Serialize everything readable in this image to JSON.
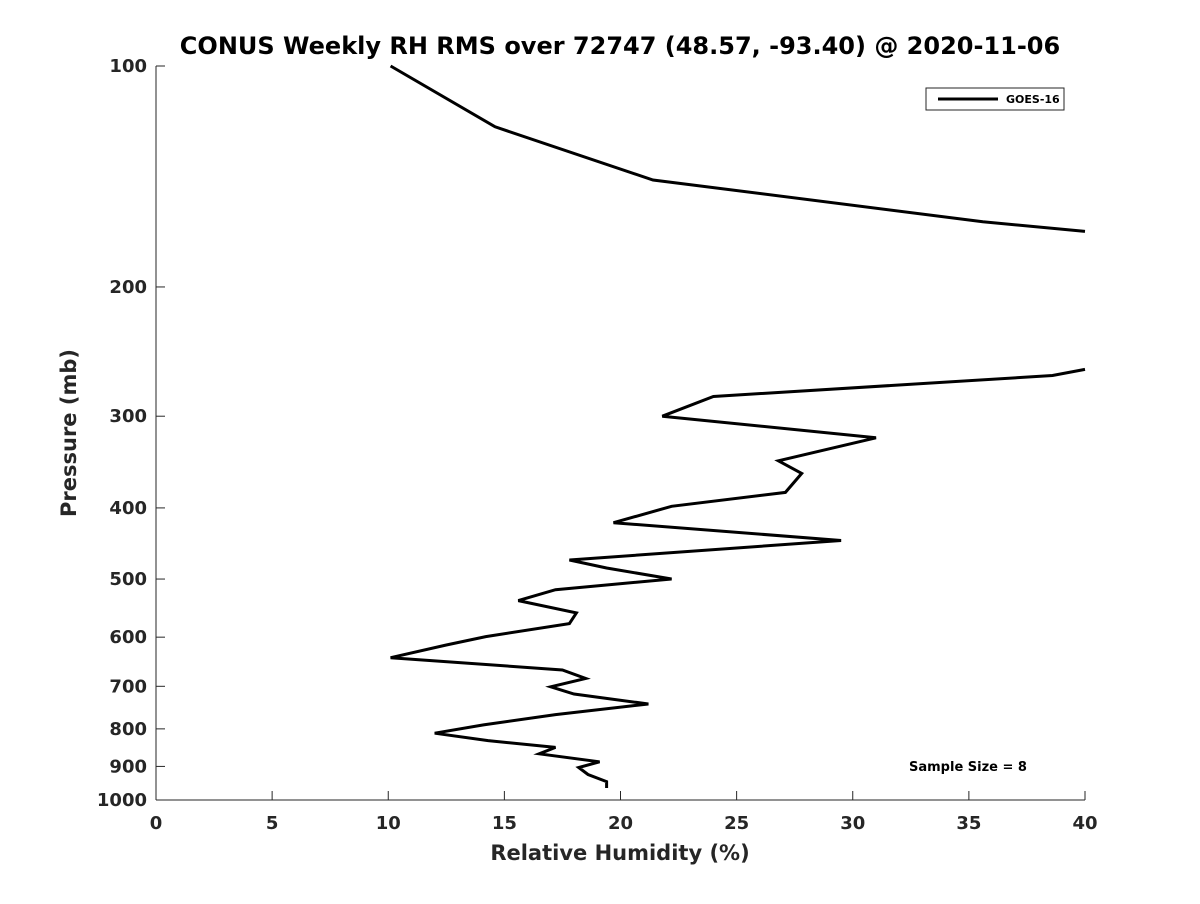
{
  "chart_data": {
    "type": "line",
    "title": "CONUS Weekly RH RMS over 72747 (48.57, -93.40) @ 2020-11-06",
    "xlabel": "Relative Humidity (%)",
    "ylabel": "Pressure (mb)",
    "xlim": [
      0,
      40
    ],
    "ylim": [
      100,
      1000
    ],
    "y_scale": "log",
    "y_reversed": true,
    "grid": false,
    "x_ticks": [
      0,
      5,
      10,
      15,
      20,
      25,
      30,
      35,
      40
    ],
    "x_tick_labels": [
      "0",
      "5",
      "10",
      "15",
      "20",
      "25",
      "30",
      "35",
      "40"
    ],
    "y_ticks": [
      100,
      200,
      300,
      400,
      500,
      600,
      700,
      800,
      900,
      1000
    ],
    "y_tick_labels": [
      "100",
      "200",
      "300",
      "400",
      "500",
      "600",
      "700",
      "800",
      "900",
      "1000"
    ],
    "legend": {
      "position": "top-right",
      "entries": [
        "GOES-16"
      ]
    },
    "annotation": "Sample Size = 8",
    "series": [
      {
        "name": "GOES-16",
        "color": "#000000",
        "segments": [
          [
            [
              10.1,
              100
            ],
            [
              14.6,
              121
            ],
            [
              21.4,
              143
            ],
            [
              35.6,
              163
            ],
            [
              40.0,
              168
            ]
          ],
          [
            [
              40.0,
              259
            ],
            [
              38.6,
              264
            ],
            [
              24.0,
              282
            ],
            [
              21.8,
              300
            ],
            [
              31.0,
              321
            ],
            [
              26.8,
              345
            ],
            [
              27.8,
              359
            ],
            [
              27.1,
              381
            ],
            [
              22.2,
              398
            ],
            [
              19.7,
              419
            ],
            [
              29.5,
              443
            ],
            [
              17.8,
              471
            ],
            [
              19.4,
              483
            ],
            [
              22.2,
              500
            ],
            [
              17.2,
              517
            ],
            [
              15.6,
              535
            ],
            [
              18.1,
              556
            ],
            [
              17.8,
              575
            ],
            [
              14.2,
              599
            ],
            [
              12.5,
              615
            ],
            [
              10.1,
              640
            ],
            [
              17.5,
              665
            ],
            [
              18.5,
              683
            ],
            [
              17.0,
              701
            ],
            [
              18.0,
              717
            ],
            [
              21.2,
              740
            ],
            [
              17.2,
              765
            ],
            [
              14.1,
              790
            ],
            [
              12.0,
              811
            ],
            [
              14.3,
              830
            ],
            [
              17.2,
              848
            ],
            [
              16.5,
              865
            ],
            [
              19.1,
              887
            ],
            [
              18.2,
              903
            ],
            [
              18.6,
              923
            ],
            [
              19.4,
              944
            ],
            [
              19.4,
              963
            ]
          ]
        ]
      }
    ]
  }
}
